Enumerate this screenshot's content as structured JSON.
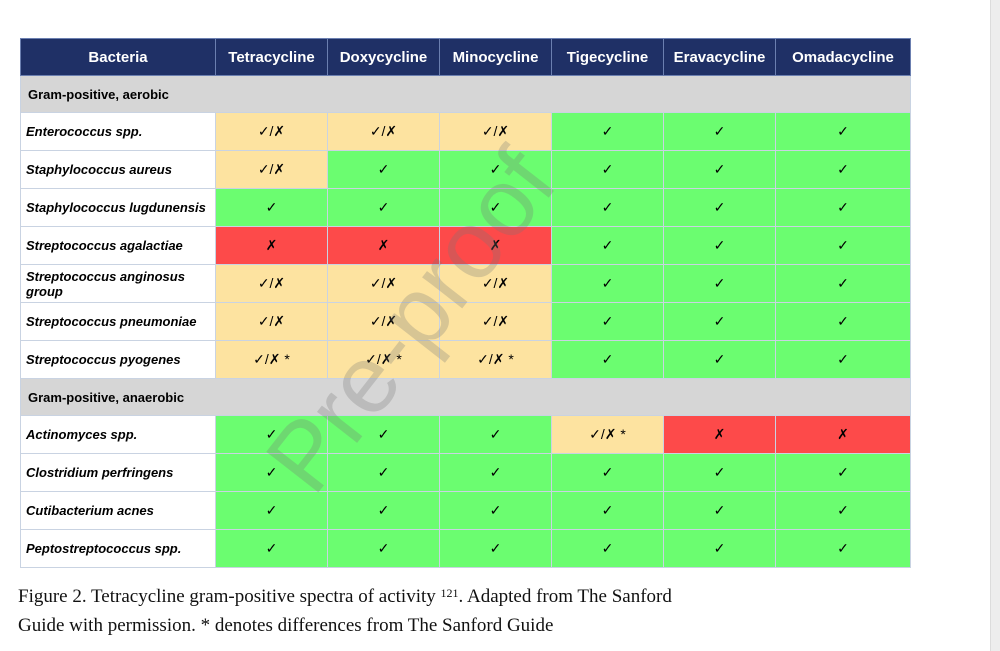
{
  "table": {
    "headers": [
      "Bacteria",
      "Tetracycline",
      "Doxycycline",
      "Minocycline",
      "Tigecycline",
      "Eravacycline",
      "Omadacycline"
    ],
    "legend_colors": {
      "green": "#6bfd70",
      "yellow": "#fde3a0",
      "red": "#fd4a4a"
    },
    "sections": [
      {
        "title": "Gram-positive, aerobic",
        "rows": [
          {
            "bacteria": "Enterococcus spp.",
            "cells": [
              {
                "text": "✓/✗",
                "status": "yellow"
              },
              {
                "text": "✓/✗",
                "status": "yellow"
              },
              {
                "text": "✓/✗",
                "status": "yellow"
              },
              {
                "text": "✓",
                "status": "green"
              },
              {
                "text": "✓",
                "status": "green"
              },
              {
                "text": "✓",
                "status": "green"
              }
            ]
          },
          {
            "bacteria": "Staphylococcus aureus",
            "cells": [
              {
                "text": "✓/✗",
                "status": "yellow"
              },
              {
                "text": "✓",
                "status": "green"
              },
              {
                "text": "✓",
                "status": "green"
              },
              {
                "text": "✓",
                "status": "green"
              },
              {
                "text": "✓",
                "status": "green"
              },
              {
                "text": "✓",
                "status": "green"
              }
            ]
          },
          {
            "bacteria": "Staphylococcus lugdunensis",
            "cells": [
              {
                "text": "✓",
                "status": "green"
              },
              {
                "text": "✓",
                "status": "green"
              },
              {
                "text": "✓",
                "status": "green"
              },
              {
                "text": "✓",
                "status": "green"
              },
              {
                "text": "✓",
                "status": "green"
              },
              {
                "text": "✓",
                "status": "green"
              }
            ]
          },
          {
            "bacteria": "Streptococcus agalactiae",
            "cells": [
              {
                "text": "✗",
                "status": "red"
              },
              {
                "text": "✗",
                "status": "red"
              },
              {
                "text": "✗",
                "status": "red"
              },
              {
                "text": "✓",
                "status": "green"
              },
              {
                "text": "✓",
                "status": "green"
              },
              {
                "text": "✓",
                "status": "green"
              }
            ]
          },
          {
            "bacteria": "Streptococcus anginosus group",
            "cells": [
              {
                "text": "✓/✗",
                "status": "yellow"
              },
              {
                "text": "✓/✗",
                "status": "yellow"
              },
              {
                "text": "✓/✗",
                "status": "yellow"
              },
              {
                "text": "✓",
                "status": "green"
              },
              {
                "text": "✓",
                "status": "green"
              },
              {
                "text": "✓",
                "status": "green"
              }
            ]
          },
          {
            "bacteria": "Streptococcus pneumoniae",
            "cells": [
              {
                "text": "✓/✗",
                "status": "yellow"
              },
              {
                "text": "✓/✗",
                "status": "yellow"
              },
              {
                "text": "✓/✗",
                "status": "yellow"
              },
              {
                "text": "✓",
                "status": "green"
              },
              {
                "text": "✓",
                "status": "green"
              },
              {
                "text": "✓",
                "status": "green"
              }
            ]
          },
          {
            "bacteria": "Streptococcus pyogenes",
            "cells": [
              {
                "text": "✓/✗ *",
                "status": "yellow"
              },
              {
                "text": "✓/✗ *",
                "status": "yellow"
              },
              {
                "text": "✓/✗ *",
                "status": "yellow"
              },
              {
                "text": "✓",
                "status": "green"
              },
              {
                "text": "✓",
                "status": "green"
              },
              {
                "text": "✓",
                "status": "green"
              }
            ]
          }
        ]
      },
      {
        "title": "Gram-positive, anaerobic",
        "rows": [
          {
            "bacteria": "Actinomyces spp.",
            "cells": [
              {
                "text": "✓",
                "status": "green"
              },
              {
                "text": "✓",
                "status": "green"
              },
              {
                "text": "✓",
                "status": "green"
              },
              {
                "text": "✓/✗ *",
                "status": "yellow"
              },
              {
                "text": "✗",
                "status": "red"
              },
              {
                "text": "✗",
                "status": "red"
              }
            ]
          },
          {
            "bacteria": "Clostridium perfringens",
            "cells": [
              {
                "text": "✓",
                "status": "green"
              },
              {
                "text": "✓",
                "status": "green"
              },
              {
                "text": "✓",
                "status": "green"
              },
              {
                "text": "✓",
                "status": "green"
              },
              {
                "text": "✓",
                "status": "green"
              },
              {
                "text": "✓",
                "status": "green"
              }
            ]
          },
          {
            "bacteria": "Cutibacterium acnes",
            "cells": [
              {
                "text": "✓",
                "status": "green"
              },
              {
                "text": "✓",
                "status": "green"
              },
              {
                "text": "✓",
                "status": "green"
              },
              {
                "text": "✓",
                "status": "green"
              },
              {
                "text": "✓",
                "status": "green"
              },
              {
                "text": "✓",
                "status": "green"
              }
            ]
          },
          {
            "bacteria": "Peptostreptococcus spp.",
            "cells": [
              {
                "text": "✓",
                "status": "green"
              },
              {
                "text": "✓",
                "status": "green"
              },
              {
                "text": "✓",
                "status": "green"
              },
              {
                "text": "✓",
                "status": "green"
              },
              {
                "text": "✓",
                "status": "green"
              },
              {
                "text": "✓",
                "status": "green"
              }
            ]
          }
        ]
      }
    ]
  },
  "caption": {
    "before_ref": "Figure 2. Tetracycline gram-positive spectra of activity ",
    "ref": "121",
    "after_ref": ". Adapted from The Sanford",
    "line2": "Guide with permission. * denotes differences from The Sanford Guide"
  },
  "watermark": "Pre-proof"
}
